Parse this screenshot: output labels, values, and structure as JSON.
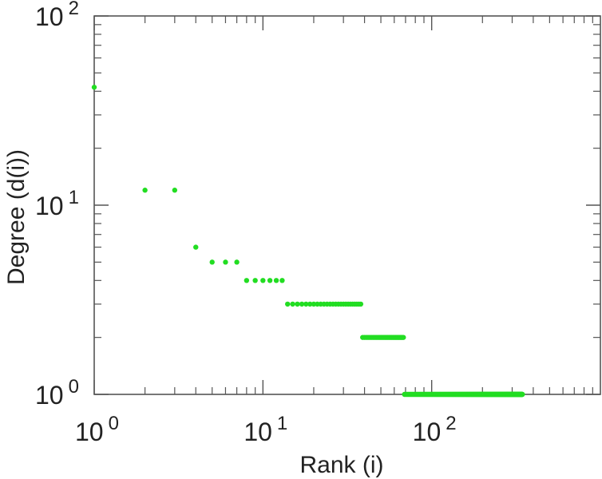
{
  "chart_data": {
    "type": "scatter",
    "title": "",
    "xlabel": "Rank (i)",
    "ylabel": "Degree (d(i))",
    "xscale": "log",
    "yscale": "log",
    "xlim": [
      1,
      1000
    ],
    "ylim": [
      1,
      100
    ],
    "grid": false,
    "legend": "none",
    "x_ticks": [
      {
        "value": 1,
        "base": "10",
        "exp": "0"
      },
      {
        "value": 10,
        "base": "10",
        "exp": "1"
      },
      {
        "value": 100,
        "base": "10",
        "exp": "2"
      }
    ],
    "y_ticks": [
      {
        "value": 1,
        "base": "10",
        "exp": "0"
      },
      {
        "value": 10,
        "base": "10",
        "exp": "1"
      },
      {
        "value": 100,
        "base": "10",
        "exp": "2"
      }
    ],
    "point_color": "#22dd22",
    "series": [
      {
        "groups": [
          {
            "degree": 42,
            "ranks": [
              1,
              1
            ]
          },
          {
            "degree": 12,
            "ranks": [
              2,
              3
            ]
          },
          {
            "degree": 6,
            "ranks": [
              4,
              4
            ]
          },
          {
            "degree": 5,
            "ranks": [
              5,
              7
            ]
          },
          {
            "degree": 4,
            "ranks": [
              8,
              13
            ]
          },
          {
            "degree": 3,
            "ranks": [
              14,
              38
            ]
          },
          {
            "degree": 2,
            "ranks": [
              39,
              68
            ]
          },
          {
            "degree": 1,
            "ranks": [
              69,
              345
            ]
          }
        ]
      }
    ]
  }
}
